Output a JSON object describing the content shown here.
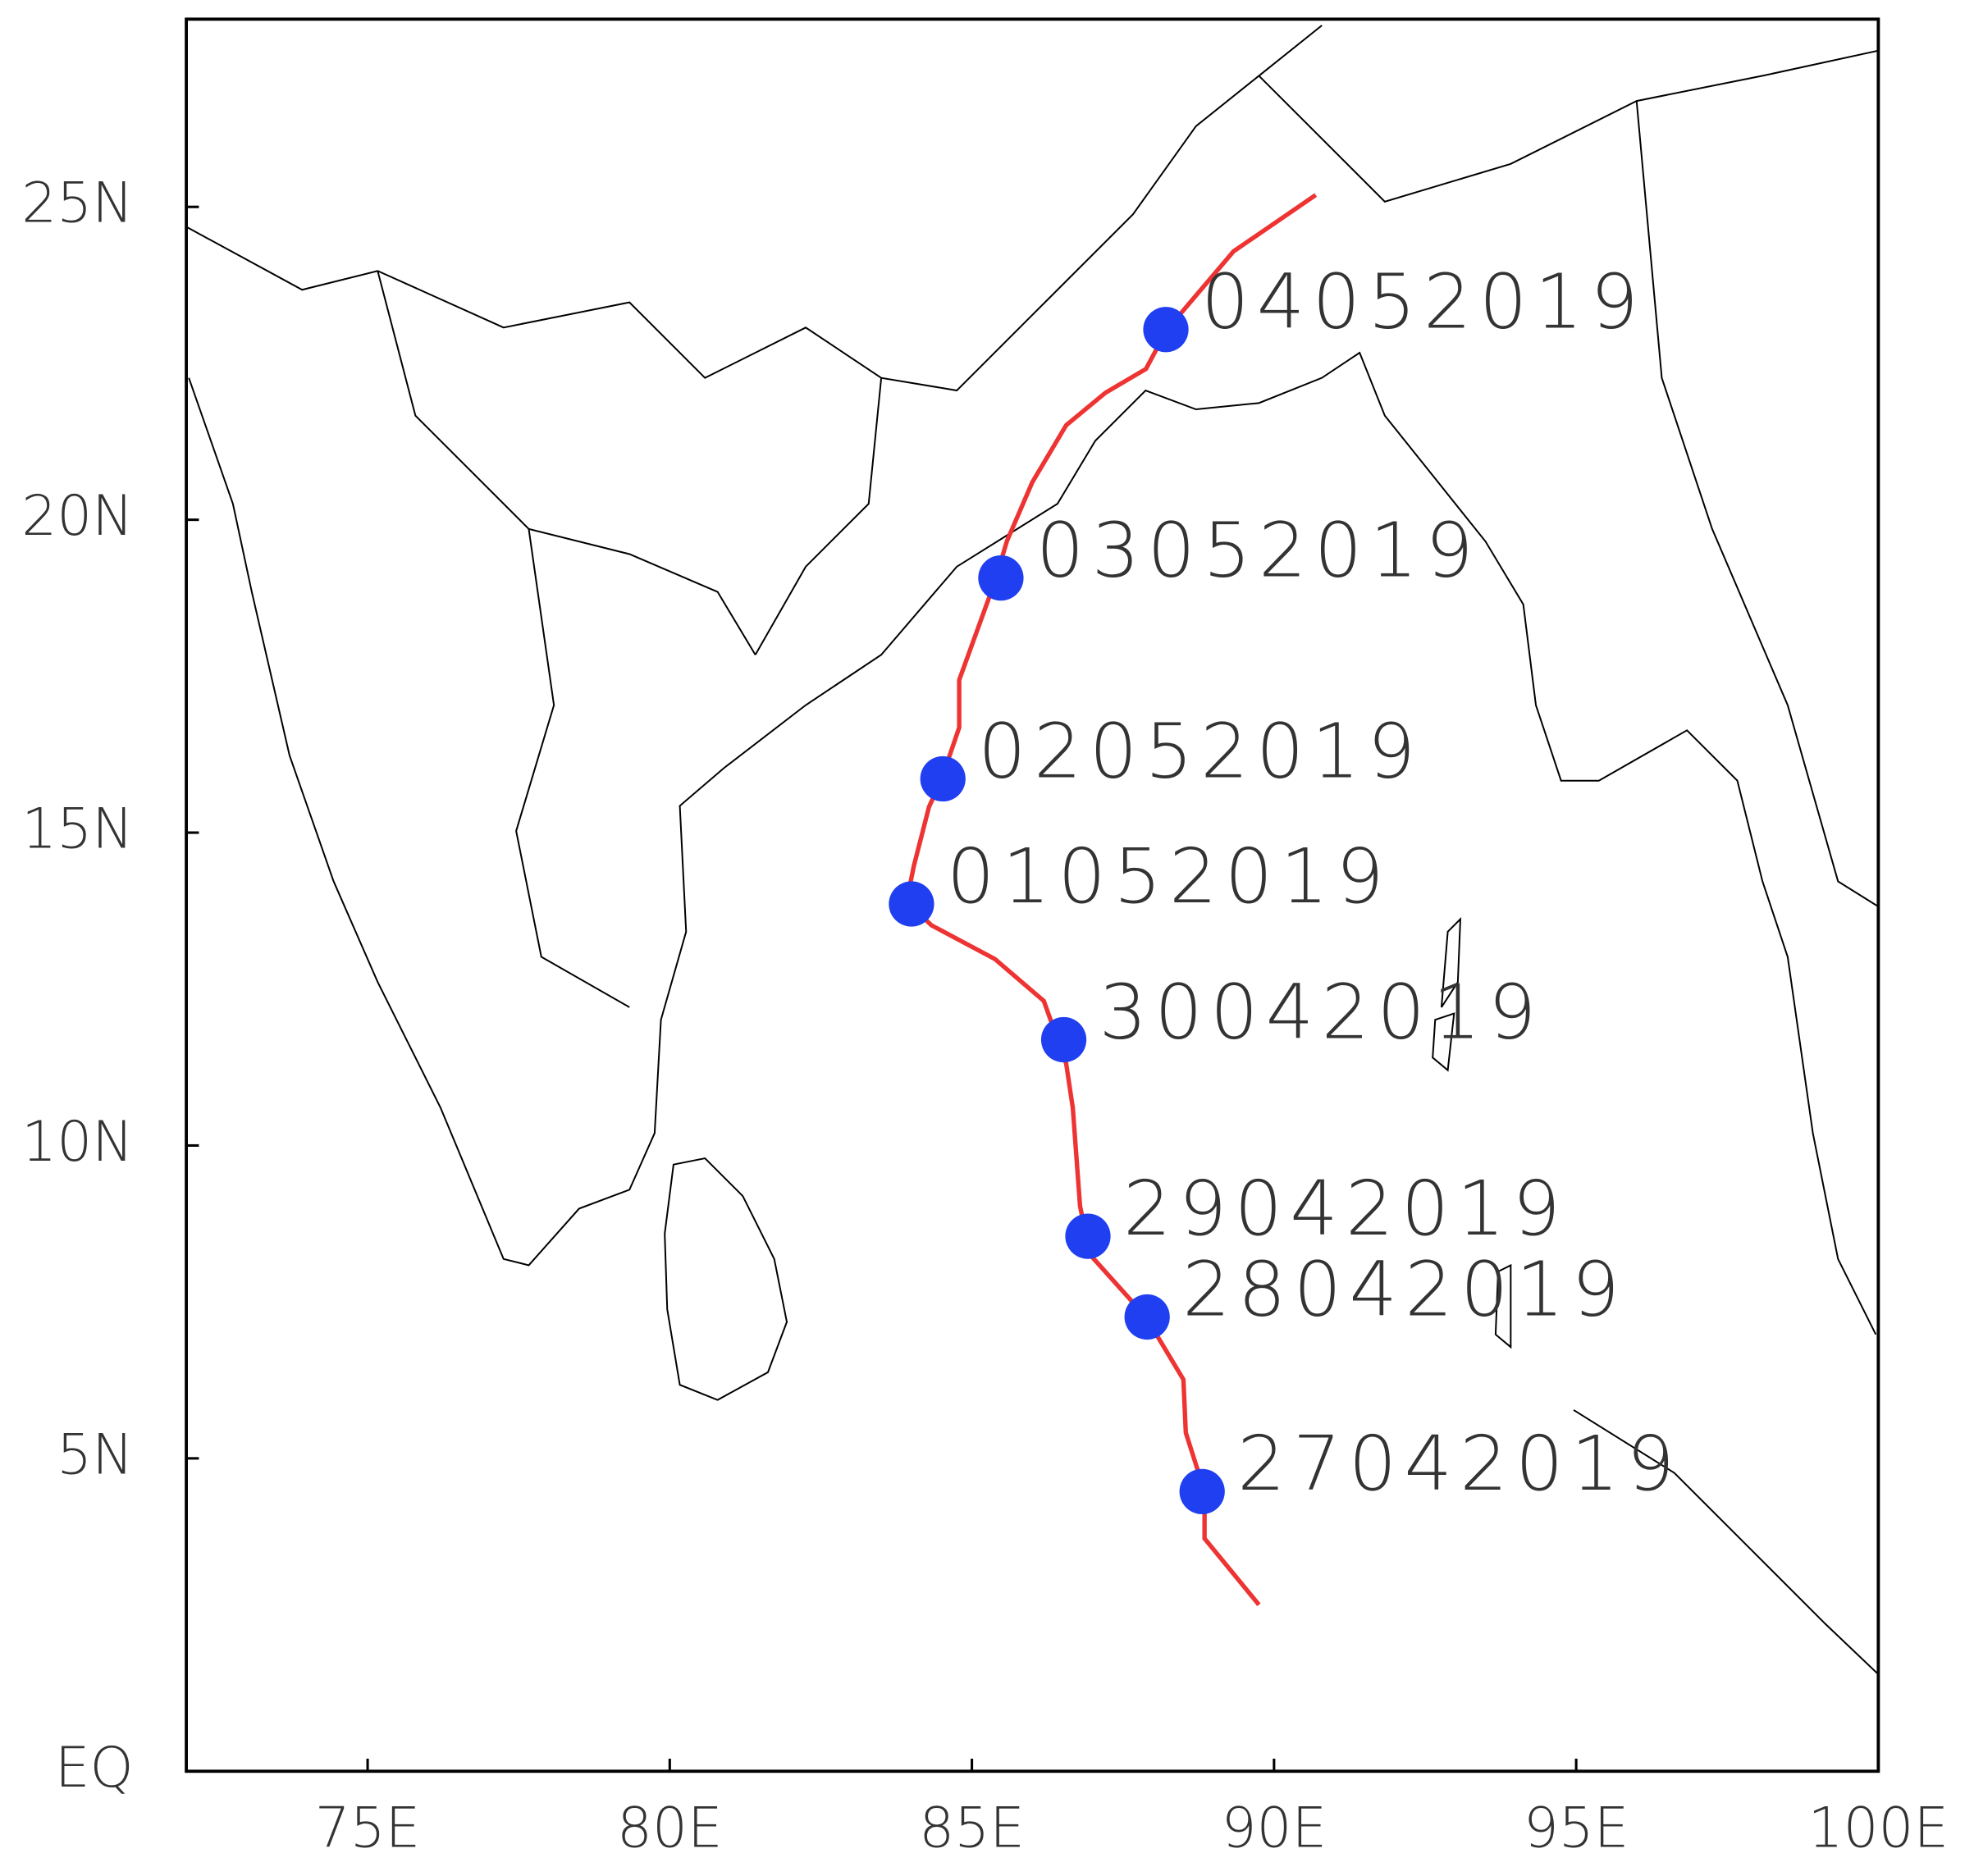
{
  "chart_data": {
    "type": "track-map",
    "xlim": [
      72,
      100
    ],
    "ylim": [
      0,
      28
    ],
    "xticks": [
      {
        "value": 75,
        "label": "75E"
      },
      {
        "value": 80,
        "label": "80E"
      },
      {
        "value": 85,
        "label": "85E"
      },
      {
        "value": 90,
        "label": "90E"
      },
      {
        "value": 95,
        "label": "95E"
      },
      {
        "value": 100,
        "label": "100E"
      }
    ],
    "yticks": [
      {
        "value": 0,
        "label": "EQ"
      },
      {
        "value": 5,
        "label": "5N"
      },
      {
        "value": 10,
        "label": "10N"
      },
      {
        "value": 15,
        "label": "15N"
      },
      {
        "value": 20,
        "label": "20N"
      },
      {
        "value": 25,
        "label": "25N"
      }
    ],
    "track": {
      "color": "#ee3333",
      "lon": [
        89.75,
        88.85,
        88.85,
        88.54,
        88.5,
        87.88,
        86.96,
        86.79,
        86.67,
        86.56,
        86.19,
        85.38,
        84.33,
        83.92,
        84.04,
        84.29,
        84.5,
        84.79,
        84.79,
        85.38,
        85.58,
        86.0,
        86.56,
        87.21,
        87.88,
        88.23,
        89.33,
        90.69
      ],
      "lat": [
        2.66,
        3.72,
        4.47,
        5.41,
        6.26,
        7.26,
        8.25,
        9.03,
        10.6,
        11.31,
        12.31,
        12.98,
        13.52,
        13.9,
        14.47,
        15.41,
        15.86,
        16.68,
        17.44,
        19.01,
        19.66,
        20.6,
        21.51,
        22.03,
        22.41,
        23.04,
        24.29,
        25.19
      ]
    },
    "points": {
      "color": "#1f3ff0",
      "lon": [
        88.81,
        87.9,
        86.92,
        86.52,
        84.0,
        84.52,
        85.48,
        88.21
      ],
      "lat": [
        4.47,
        7.26,
        8.55,
        11.69,
        13.86,
        15.86,
        19.07,
        23.04
      ],
      "labels": [
        "27042019",
        "28042019",
        "29042019",
        "30042019",
        "01052019",
        "02052019",
        "03052019",
        "04052019"
      ]
    }
  }
}
